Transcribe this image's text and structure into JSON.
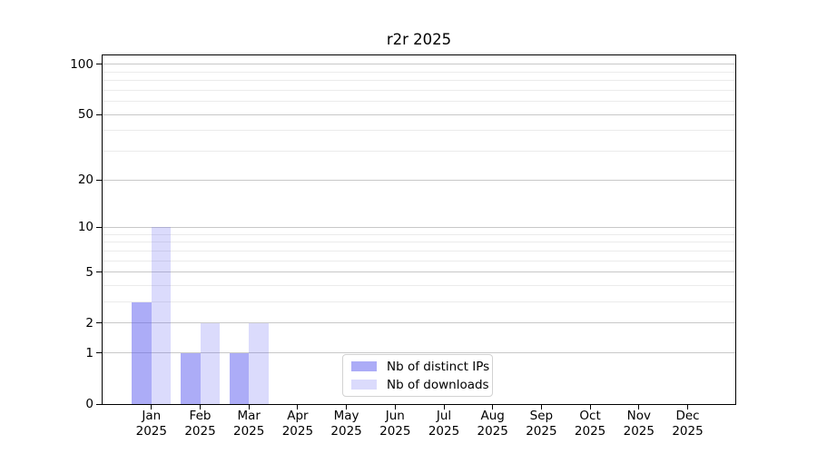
{
  "title": "r2r 2025",
  "chart_data": {
    "type": "bar",
    "title": "r2r 2025",
    "categories": [
      "Jan 2025",
      "Feb 2025",
      "Mar 2025",
      "Apr 2025",
      "May 2025",
      "Jun 2025",
      "Jul 2025",
      "Aug 2025",
      "Sep 2025",
      "Oct 2025",
      "Nov 2025",
      "Dec 2025"
    ],
    "x_tick_months": [
      "Jan",
      "Feb",
      "Mar",
      "Apr",
      "May",
      "Jun",
      "Jul",
      "Aug",
      "Sep",
      "Oct",
      "Nov",
      "Dec"
    ],
    "x_tick_year": "2025",
    "series": [
      {
        "name": "Nb of distinct IPs",
        "color": "rgba(90,90,240,0.5)",
        "values": [
          3,
          1,
          1,
          0,
          0,
          0,
          0,
          0,
          0,
          0,
          0,
          0
        ]
      },
      {
        "name": "Nb of downloads",
        "color": "rgba(90,90,240,0.22)",
        "values": [
          10,
          2,
          2,
          0,
          0,
          0,
          0,
          0,
          0,
          0,
          0,
          0
        ]
      }
    ],
    "y_axis": {
      "scale": "log10(1+x)",
      "major_ticks": [
        0,
        1,
        2,
        5,
        10,
        20,
        50,
        100
      ],
      "minor_ticks": [
        3,
        4,
        6,
        7,
        8,
        9,
        30,
        40,
        60,
        70,
        80,
        90
      ],
      "top_value": 112
    },
    "xlabel": "",
    "ylabel": "",
    "grid": true,
    "legend_position": "lower center",
    "colors": {
      "bar_distinct_ips": "rgba(90,90,240,0.5)",
      "bar_downloads": "rgba(90,90,240,0.22)",
      "major_grid": "#c8c8c8",
      "minor_grid": "#ebebeb",
      "spine": "#000000",
      "legend_border": "#d2d2d2"
    }
  }
}
